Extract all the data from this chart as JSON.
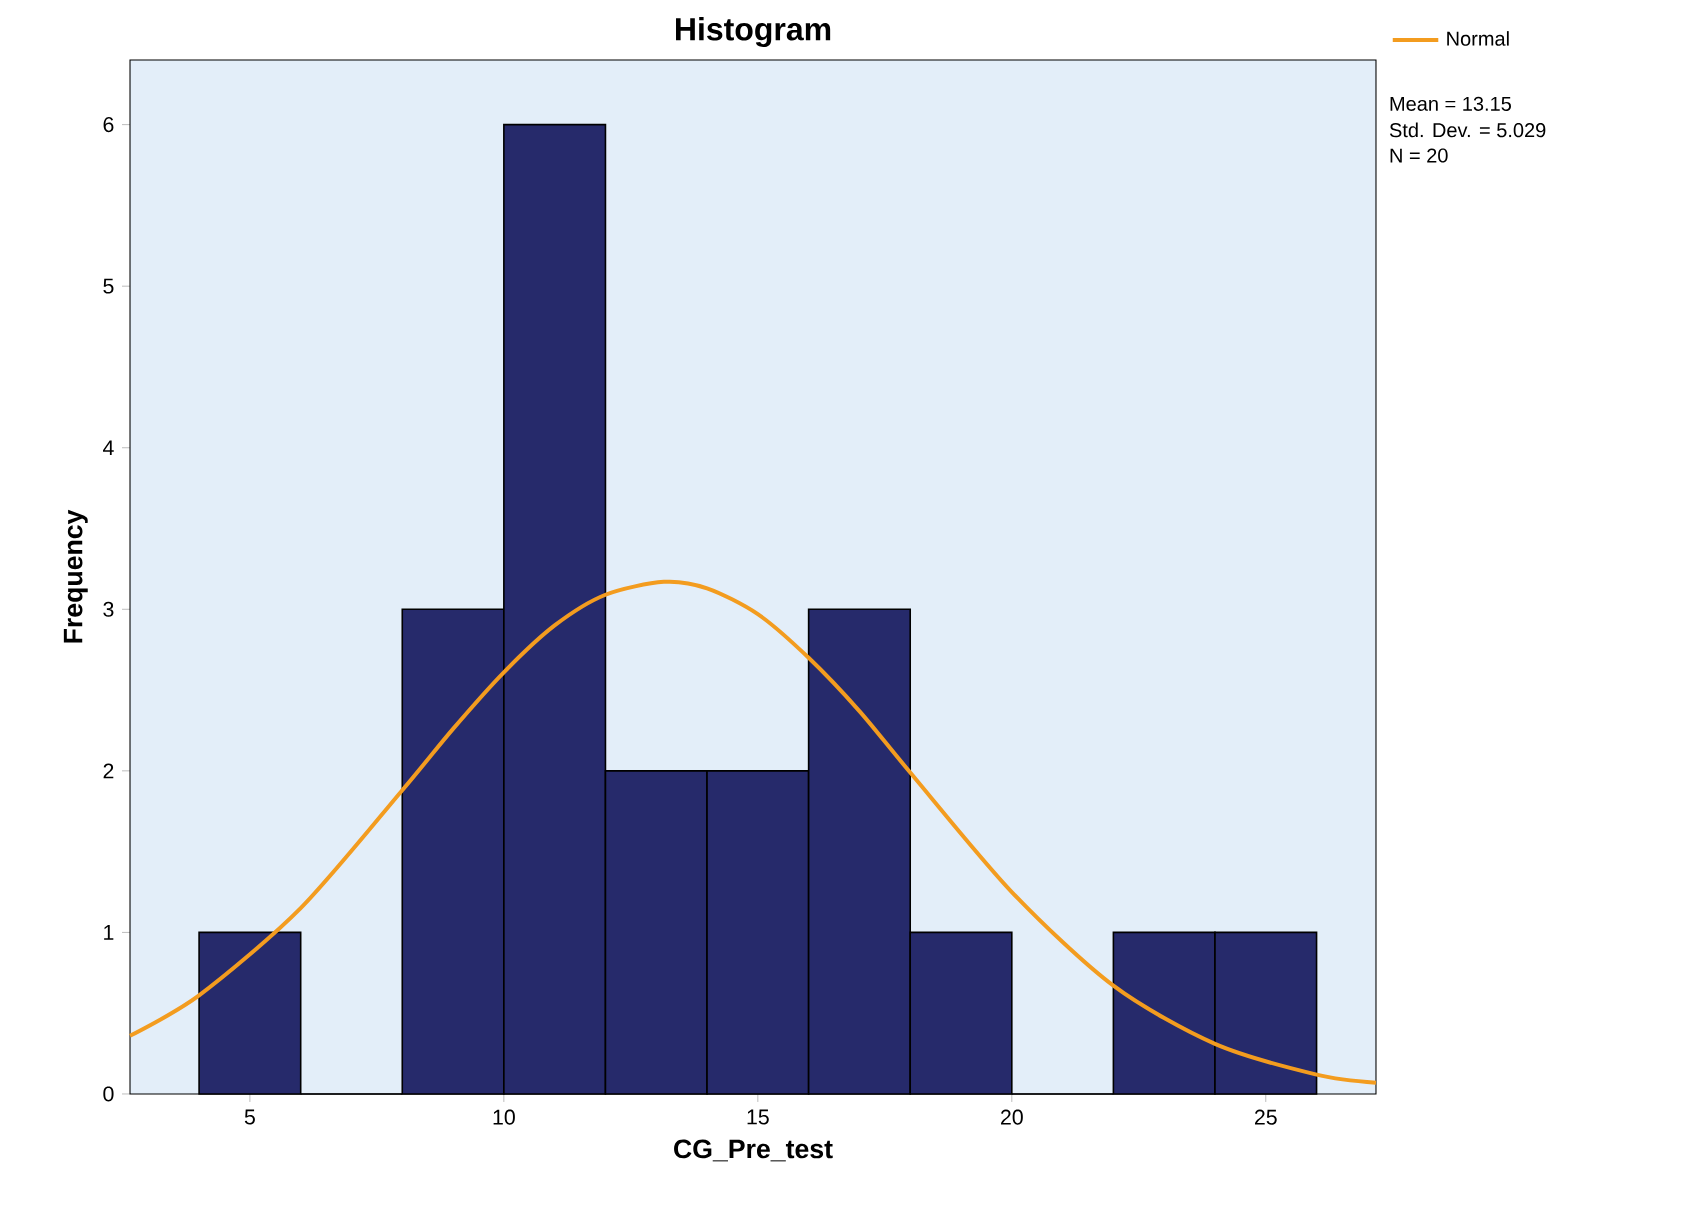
{
  "chart_data": {
    "type": "histogram",
    "title": "Histogram",
    "xlabel": "CG_Pre_test",
    "ylabel": "Frequency",
    "bins": [
      4,
      6,
      8,
      10,
      12,
      14,
      16,
      18,
      20,
      22,
      24,
      26
    ],
    "values": [
      1,
      0,
      3,
      6,
      2,
      2,
      3,
      1,
      0,
      1,
      1
    ],
    "color": "#262a6b",
    "series": [
      {
        "name": "Normal",
        "type": "line",
        "color": "#f39c1f",
        "x": [
          2.64,
          4,
          6,
          8,
          9,
          10,
          11,
          12,
          13.15,
          14,
          15,
          16,
          17,
          18,
          20,
          22,
          24,
          26,
          27.17
        ],
        "values": [
          0.36,
          0.61,
          1.15,
          1.88,
          2.26,
          2.61,
          2.9,
          3.09,
          3.17,
          3.13,
          2.97,
          2.7,
          2.37,
          1.99,
          1.25,
          0.67,
          0.31,
          0.12,
          0.07
        ]
      }
    ],
    "xlim": [
      2.64,
      27.17
    ],
    "ylim": [
      0,
      6.4
    ],
    "xticks": [
      5,
      10,
      15,
      20,
      25
    ],
    "yticks": [
      0,
      1,
      2,
      3,
      4,
      5,
      6
    ],
    "annotations": [
      "Mean = 13.15",
      "Std. Dev. = 5.029",
      "N = 20"
    ],
    "grid": false,
    "legend": "top right"
  }
}
